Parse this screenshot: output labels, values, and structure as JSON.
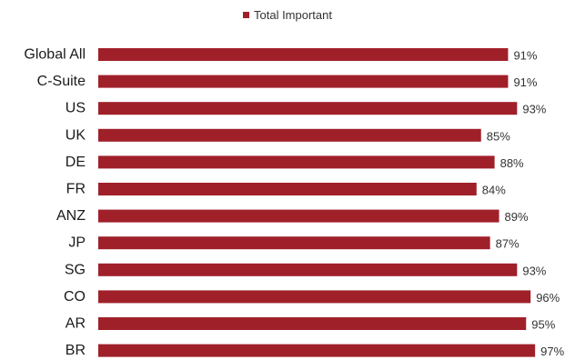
{
  "colors": {
    "bar": "#A0202A"
  },
  "chart_data": {
    "type": "bar",
    "orientation": "horizontal",
    "categories": [
      "Global All",
      "C-Suite",
      "US",
      "UK",
      "DE",
      "FR",
      "ANZ",
      "JP",
      "SG",
      "CO",
      "AR",
      "BR"
    ],
    "series": [
      {
        "name": "Total Important",
        "values": [
          91,
          91,
          93,
          85,
          88,
          84,
          89,
          87,
          93,
          96,
          95,
          97
        ],
        "labels": [
          "91%",
          "91%",
          "93%",
          "85%",
          "88%",
          "84%",
          "89%",
          "87%",
          "93%",
          "96%",
          "95%",
          "97%"
        ]
      }
    ],
    "xlim": [
      0,
      100
    ],
    "grid": false,
    "legend": "top-center"
  }
}
